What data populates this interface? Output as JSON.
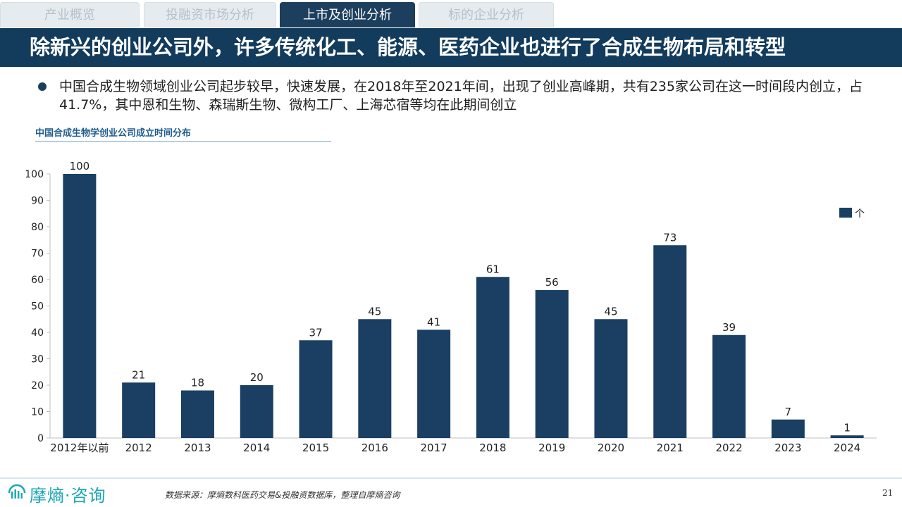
{
  "tabs": [
    {
      "label": "产业概览",
      "active": false
    },
    {
      "label": "投融资市场分析",
      "active": false
    },
    {
      "label": "上市及创业分析",
      "active": true
    },
    {
      "label": "标的企业分析",
      "active": false
    }
  ],
  "title": "除新兴的创业公司外，许多传统化工、能源、医药企业也进行了合成生物布局和转型",
  "bullet": "中国合成生物领域创业公司起步较早，快速发展，在2018年至2021年间，出现了创业高峰期，共有235家公司在这一时间段内创立，占41.7%，其中恩和生物、森瑞斯生物、微构工厂、上海芯宿等均在此期间创立",
  "chart_caption": "中国合成生物学创业公司成立时间分布",
  "chart_data": {
    "type": "bar",
    "categories": [
      "2012年以前",
      "2012",
      "2013",
      "2014",
      "2015",
      "2016",
      "2017",
      "2018",
      "2019",
      "2020",
      "2021",
      "2022",
      "2023",
      "2024"
    ],
    "series": [
      {
        "name": "个",
        "values": [
          100,
          21,
          18,
          20,
          37,
          45,
          41,
          61,
          56,
          45,
          73,
          39,
          7,
          1
        ]
      }
    ],
    "ylim": [
      0,
      100
    ],
    "yticks": [
      0,
      10,
      20,
      30,
      40,
      50,
      60,
      70,
      80,
      90,
      100
    ],
    "grid": false,
    "legend_position": "right",
    "bar_color": "#1a3f63"
  },
  "footer": {
    "logo_text": "摩熵·咨询",
    "source": "数据来源：摩熵数科医药交易&投融资数据库，整理自摩熵咨询",
    "page_number": "21"
  },
  "colors": {
    "primary": "#123b5c",
    "accent": "#1aa6b4"
  }
}
